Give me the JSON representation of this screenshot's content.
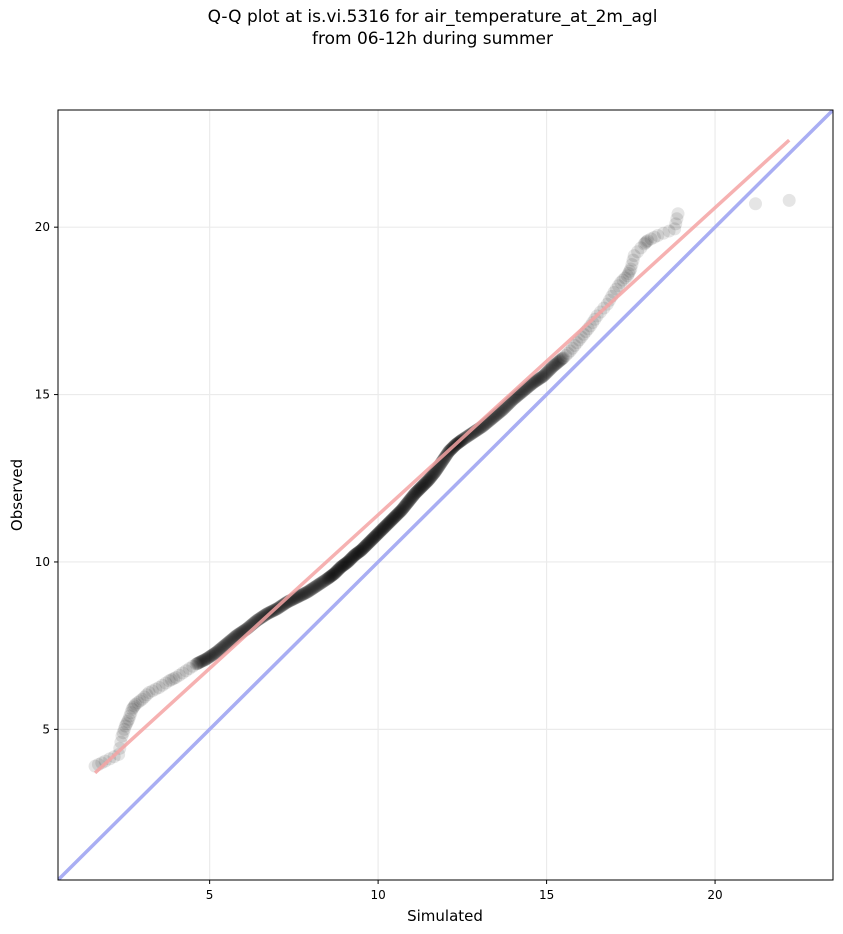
{
  "title_lines": [
    "Q-Q plot at is.vi.5316 for air_temperature_at_2m_agl",
    "from 06-12h during summer"
  ],
  "chart_data": {
    "type": "scatter",
    "xlabel": "Simulated",
    "ylabel": "Observed",
    "xlim": [
      0.5,
      23.5
    ],
    "ylim": [
      0.5,
      23.5
    ],
    "xticks": [
      5,
      10,
      15,
      20
    ],
    "yticks": [
      5,
      10,
      15,
      20
    ],
    "grid": true,
    "colors": {
      "points": "#000000",
      "fit_line": "#f4a3a3",
      "identity_line": "#a9aef3",
      "axes": "#000000",
      "grid": "#ebebeb"
    },
    "series": [
      {
        "kind": "quantiles",
        "x": [
          1.6,
          1.9,
          2.3,
          2.4,
          2.5,
          2.6,
          2.7,
          2.8,
          3.0,
          3.2,
          3.5,
          3.8,
          4.0,
          4.3,
          4.6,
          4.9,
          5.2,
          5.5,
          5.8,
          6.1,
          6.4,
          6.7,
          7.0,
          7.3,
          7.6,
          7.9,
          8.2,
          8.5,
          8.7,
          8.9,
          9.1,
          9.3,
          9.5,
          9.7,
          9.9,
          10.1,
          10.3,
          10.5,
          10.7,
          10.9,
          11.1,
          11.3,
          11.5,
          11.7,
          11.9,
          12.1,
          12.3,
          12.5,
          12.8,
          13.1,
          13.4,
          13.7,
          14.0,
          14.3,
          14.6,
          14.9,
          15.2,
          15.5,
          15.7,
          15.9,
          16.1,
          16.3,
          16.5,
          16.8,
          17.0,
          17.2,
          17.4,
          17.5,
          17.6,
          17.9,
          18.0,
          18.3,
          18.8,
          18.9,
          21.2,
          22.2
        ],
        "y": [
          3.9,
          4.05,
          4.25,
          4.8,
          5.1,
          5.3,
          5.6,
          5.75,
          5.9,
          6.1,
          6.25,
          6.45,
          6.55,
          6.75,
          6.95,
          7.1,
          7.3,
          7.55,
          7.8,
          8.0,
          8.25,
          8.45,
          8.6,
          8.8,
          8.95,
          9.1,
          9.3,
          9.5,
          9.65,
          9.85,
          10.0,
          10.2,
          10.35,
          10.55,
          10.75,
          10.95,
          11.15,
          11.35,
          11.55,
          11.8,
          12.05,
          12.25,
          12.45,
          12.7,
          13.0,
          13.3,
          13.5,
          13.65,
          13.85,
          14.05,
          14.3,
          14.55,
          14.85,
          15.1,
          15.35,
          15.55,
          15.85,
          16.1,
          16.3,
          16.55,
          16.8,
          17.05,
          17.35,
          17.7,
          18.05,
          18.35,
          18.55,
          18.75,
          19.15,
          19.5,
          19.6,
          19.75,
          19.95,
          20.4,
          20.7,
          20.8
        ]
      }
    ],
    "fit_line": {
      "x": [
        1.6,
        22.2
      ],
      "y": [
        3.7,
        22.6
      ]
    },
    "identity_line": {
      "x": [
        0.5,
        23.5
      ],
      "y": [
        0.5,
        23.5
      ]
    }
  }
}
